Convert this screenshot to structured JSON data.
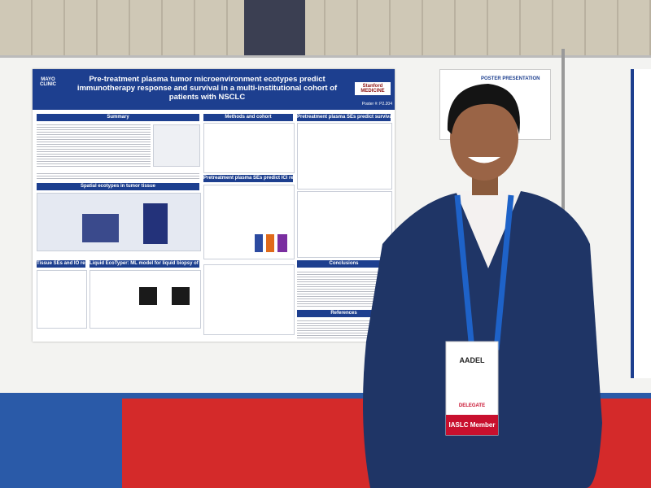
{
  "poster": {
    "title": "Pre-treatment plasma tumor microenvironment ecotypes predict immunotherapy response and survival in a multi-institutional cohort of patients with NSCLC",
    "logo_left": "MAYO CLINIC",
    "logo_right": "Stanford MEDICINE",
    "poster_number": "Poster #: P2.204",
    "sections": [
      "Summary",
      "Methods and cohort",
      "Pretreatment plasma SEs predict survival",
      "Spatial ecotypes in tumor tissue",
      "Pretreatment plasma SEs predict ICI response",
      "Tissue SEs and IO response",
      "Liquid EcoTyper: ML model for liquid biopsy of the TME",
      "Conclusions",
      "References"
    ]
  },
  "sign": {
    "label": "POSTER PRESENTATION"
  },
  "badge": {
    "name": "AADEL",
    "role": "DELEGATE",
    "member": "IASLC Member"
  }
}
